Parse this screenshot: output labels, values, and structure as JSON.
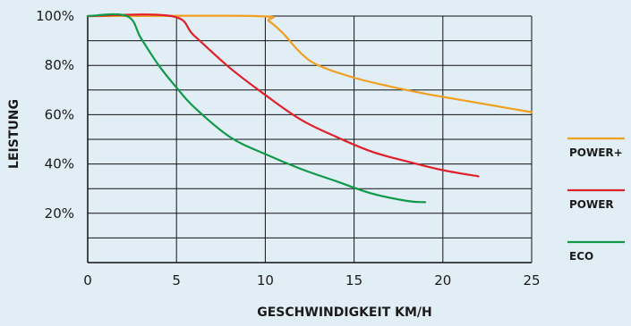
{
  "chart_data": {
    "type": "line",
    "title": "",
    "xlabel": "GESCHWINDIGKEIT KM/H",
    "ylabel": "LEISTUNG",
    "xlim": [
      0,
      25
    ],
    "ylim": [
      0,
      100
    ],
    "x_ticks": [
      0,
      5,
      10,
      15,
      20,
      25
    ],
    "x_tick_labels": [
      "0",
      "5",
      "10",
      "15",
      "20",
      "25"
    ],
    "y_ticks": [
      20,
      40,
      60,
      80,
      100
    ],
    "y_tick_labels": [
      "20%",
      "40%",
      "60%",
      "80%",
      "100%"
    ],
    "y_grid": [
      10,
      20,
      30,
      40,
      50,
      60,
      70,
      80,
      90,
      100
    ],
    "x_grid": [
      0,
      5,
      10,
      15,
      20,
      25
    ],
    "grid": true,
    "legend_position": "right",
    "series": [
      {
        "name": "POWER+",
        "color": "#f0a020",
        "x": [
          0,
          9.5,
          10.2,
          11,
          12,
          13,
          15,
          17,
          19,
          21,
          23,
          25
        ],
        "y": [
          100,
          100,
          98,
          93,
          85,
          80,
          75,
          71.5,
          68.5,
          66,
          63.5,
          61
        ]
      },
      {
        "name": "POWER",
        "color": "#e0202a",
        "x": [
          0,
          4.7,
          6,
          8,
          10,
          12,
          14,
          16,
          18,
          20,
          22
        ],
        "y": [
          100,
          100,
          92,
          79,
          68,
          58,
          51,
          45,
          41,
          37.5,
          35
        ]
      },
      {
        "name": "ECO",
        "color": "#109a48",
        "x": [
          0,
          2.2,
          3,
          4,
          5,
          6,
          8,
          10,
          12,
          14,
          16,
          18,
          19
        ],
        "y": [
          100,
          100,
          91,
          80,
          71,
          63,
          51,
          44,
          38,
          33,
          28,
          25,
          24.5
        ]
      }
    ]
  }
}
